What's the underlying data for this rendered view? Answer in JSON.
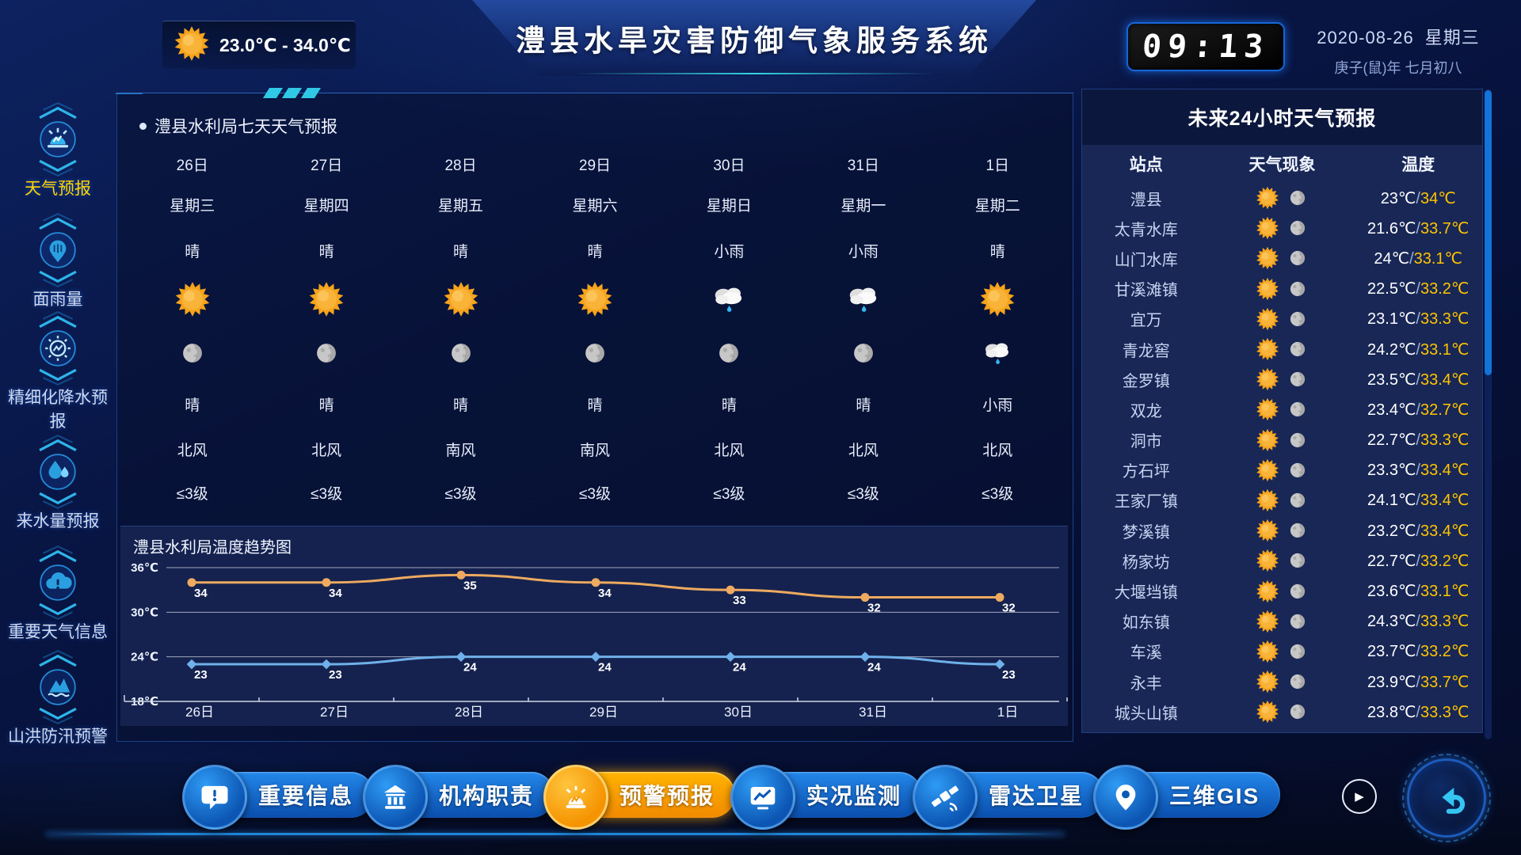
{
  "header": {
    "temp_range": "23.0℃ - 34.0℃",
    "title": "澧县水旱灾害防御气象服务系统",
    "clock": "09:13",
    "date": "2020-08-26",
    "weekday": "星期三",
    "lunar": "庚子(鼠)年 七月初八",
    "temp_icon": "sun-icon"
  },
  "sidebar": {
    "items": [
      {
        "label": "天气预报",
        "icon": "weather-forecast-icon",
        "active": true
      },
      {
        "label": "面雨量",
        "icon": "areal-rainfall-icon",
        "active": false
      },
      {
        "label": "精细化降水预报",
        "icon": "refined-precipitation-icon",
        "active": false
      },
      {
        "label": "来水量预报",
        "icon": "inflow-forecast-icon",
        "active": false
      },
      {
        "label": "重要天气信息",
        "icon": "important-weather-icon",
        "active": false
      },
      {
        "label": "山洪防汛预警",
        "icon": "flood-warning-icon",
        "active": false
      }
    ]
  },
  "forecast7d": {
    "title": "澧县水利局七天天气预报",
    "days": [
      {
        "date": "26日",
        "weekday": "星期三",
        "day_text": "晴",
        "day_icon": "sun-icon",
        "night_icon": "moon-icon",
        "night_text": "晴",
        "wind_dir": "北风",
        "wind_level": "≤3级"
      },
      {
        "date": "27日",
        "weekday": "星期四",
        "day_text": "晴",
        "day_icon": "sun-icon",
        "night_icon": "moon-icon",
        "night_text": "晴",
        "wind_dir": "北风",
        "wind_level": "≤3级"
      },
      {
        "date": "28日",
        "weekday": "星期五",
        "day_text": "晴",
        "day_icon": "sun-icon",
        "night_icon": "moon-icon",
        "night_text": "晴",
        "wind_dir": "南风",
        "wind_level": "≤3级"
      },
      {
        "date": "29日",
        "weekday": "星期六",
        "day_text": "晴",
        "day_icon": "sun-icon",
        "night_icon": "moon-icon",
        "night_text": "晴",
        "wind_dir": "南风",
        "wind_level": "≤3级"
      },
      {
        "date": "30日",
        "weekday": "星期日",
        "day_text": "小雨",
        "day_icon": "rain-icon",
        "night_icon": "moon-icon",
        "night_text": "晴",
        "wind_dir": "北风",
        "wind_level": "≤3级"
      },
      {
        "date": "31日",
        "weekday": "星期一",
        "day_text": "小雨",
        "day_icon": "rain-icon",
        "night_icon": "moon-icon",
        "night_text": "晴",
        "wind_dir": "北风",
        "wind_level": "≤3级"
      },
      {
        "date": "1日",
        "weekday": "星期二",
        "day_text": "晴",
        "day_icon": "sun-icon",
        "night_icon": "rain-icon",
        "night_text": "小雨",
        "wind_dir": "北风",
        "wind_level": "≤3级"
      }
    ]
  },
  "chart_data": {
    "type": "line",
    "title": "澧县水利局温度趋势图",
    "categories": [
      "26日",
      "27日",
      "28日",
      "29日",
      "30日",
      "31日",
      "1日"
    ],
    "series": [
      {
        "name": "high",
        "values": [
          34,
          34,
          35,
          34,
          33,
          32,
          32
        ],
        "color": "#edaa60",
        "marker": "circle"
      },
      {
        "name": "low",
        "values": [
          23,
          23,
          24,
          24,
          24,
          24,
          23
        ],
        "color": "#6fb1ea",
        "marker": "diamond"
      }
    ],
    "ylim": [
      18,
      36
    ],
    "yticks": [
      {
        "v": 36,
        "label": "36℃"
      },
      {
        "v": 30,
        "label": "30℃"
      },
      {
        "v": 24,
        "label": "24℃"
      },
      {
        "v": 18,
        "label": "18℃"
      }
    ],
    "grid": true,
    "legend": "none"
  },
  "next24h": {
    "title": "未来24小时天气预报",
    "columns": [
      "站点",
      "天气现象",
      "温度"
    ],
    "rows": [
      {
        "station": "澧县",
        "day_icon": "sun-icon",
        "night_icon": "moon-icon",
        "low": "23℃",
        "high": "34℃"
      },
      {
        "station": "太青水库",
        "day_icon": "sun-icon",
        "night_icon": "moon-icon",
        "low": "21.6℃",
        "high": "33.7℃"
      },
      {
        "station": "山门水库",
        "day_icon": "sun-icon",
        "night_icon": "moon-icon",
        "low": "24℃",
        "high": "33.1℃"
      },
      {
        "station": "甘溪滩镇",
        "day_icon": "sun-icon",
        "night_icon": "moon-icon",
        "low": "22.5℃",
        "high": "33.2℃"
      },
      {
        "station": "宜万",
        "day_icon": "sun-icon",
        "night_icon": "moon-icon",
        "low": "23.1℃",
        "high": "33.3℃"
      },
      {
        "station": "青龙窖",
        "day_icon": "sun-icon",
        "night_icon": "moon-icon",
        "low": "24.2℃",
        "high": "33.1℃"
      },
      {
        "station": "金罗镇",
        "day_icon": "sun-icon",
        "night_icon": "moon-icon",
        "low": "23.5℃",
        "high": "33.4℃"
      },
      {
        "station": "双龙",
        "day_icon": "sun-icon",
        "night_icon": "moon-icon",
        "low": "23.4℃",
        "high": "32.7℃"
      },
      {
        "station": "洞市",
        "day_icon": "sun-icon",
        "night_icon": "moon-icon",
        "low": "22.7℃",
        "high": "33.3℃"
      },
      {
        "station": "方石坪",
        "day_icon": "sun-icon",
        "night_icon": "moon-icon",
        "low": "23.3℃",
        "high": "33.4℃"
      },
      {
        "station": "王家厂镇",
        "day_icon": "sun-icon",
        "night_icon": "moon-icon",
        "low": "24.1℃",
        "high": "33.4℃"
      },
      {
        "station": "梦溪镇",
        "day_icon": "sun-icon",
        "night_icon": "moon-icon",
        "low": "23.2℃",
        "high": "33.4℃"
      },
      {
        "station": "杨家坊",
        "day_icon": "sun-icon",
        "night_icon": "moon-icon",
        "low": "22.7℃",
        "high": "33.2℃"
      },
      {
        "station": "大堰垱镇",
        "day_icon": "sun-icon",
        "night_icon": "moon-icon",
        "low": "23.6℃",
        "high": "33.1℃"
      },
      {
        "station": "如东镇",
        "day_icon": "sun-icon",
        "night_icon": "moon-icon",
        "low": "24.3℃",
        "high": "33.3℃"
      },
      {
        "station": "车溪",
        "day_icon": "sun-icon",
        "night_icon": "moon-icon",
        "low": "23.7℃",
        "high": "33.2℃"
      },
      {
        "station": "永丰",
        "day_icon": "sun-icon",
        "night_icon": "moon-icon",
        "low": "23.9℃",
        "high": "33.7℃"
      },
      {
        "station": "城头山镇",
        "day_icon": "sun-icon",
        "night_icon": "moon-icon",
        "low": "23.8℃",
        "high": "33.3℃"
      }
    ]
  },
  "bottom_nav": {
    "items": [
      {
        "label": "重要信息",
        "icon": "info-bubble-icon",
        "active": false
      },
      {
        "label": "机构职责",
        "icon": "institution-icon",
        "active": false
      },
      {
        "label": "预警预报",
        "icon": "alert-siren-icon",
        "active": true
      },
      {
        "label": "实况监测",
        "icon": "live-monitor-icon",
        "active": false
      },
      {
        "label": "雷达卫星",
        "icon": "radar-satellite-icon",
        "active": false
      },
      {
        "label": "三维GIS",
        "icon": "gis-pin-icon",
        "active": false
      }
    ],
    "play_icon": "play-icon",
    "back_icon": "return-arrow-icon"
  },
  "colors": {
    "accent_cyan": "#2fc9e6",
    "accent_yellow": "#ffd400",
    "temp_high": "#ffc400",
    "nav_active": "#ffaa00",
    "nav_blue": "#1a7fe8",
    "chart_high_line": "#edaa60",
    "chart_low_line": "#6fb1ea"
  }
}
